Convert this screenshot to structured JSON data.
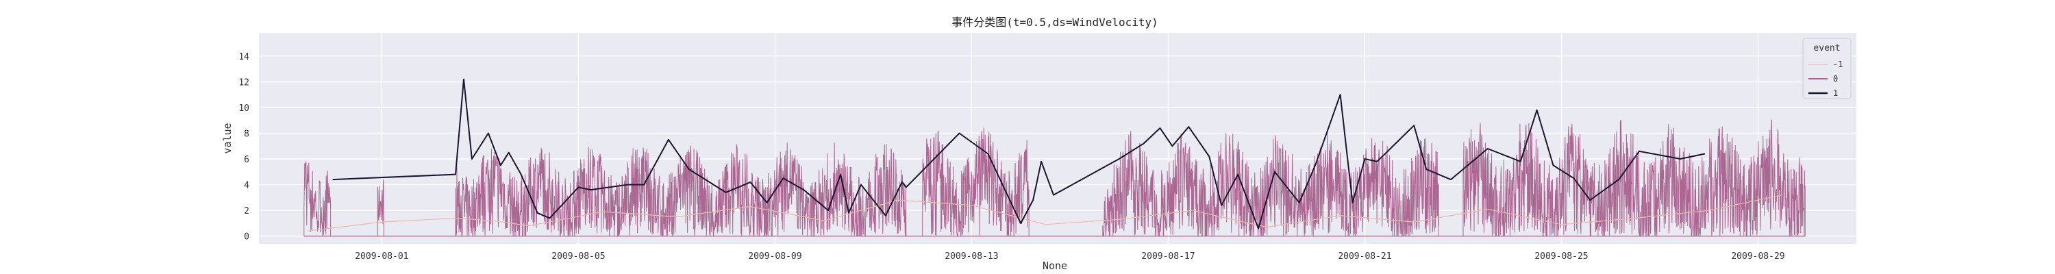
{
  "chart_data": {
    "type": "line",
    "title": "事件分类图(t=0.5,ds=WindVelocity)",
    "xlabel": "None",
    "ylabel": "value",
    "xlim": [
      "2009-07-29T12:00",
      "2009-08-31T00:00"
    ],
    "ylim": [
      -0.6,
      15.8
    ],
    "yticks": [
      0,
      2,
      4,
      6,
      8,
      10,
      12,
      14
    ],
    "xticks": [
      "2009-08-01",
      "2009-08-05",
      "2009-08-09",
      "2009-08-13",
      "2009-08-17",
      "2009-08-21",
      "2009-08-25",
      "2009-08-29"
    ],
    "grid": true,
    "legend": {
      "title": "event",
      "position": "top-right",
      "entries": [
        "-1",
        "0",
        "1"
      ]
    },
    "colors": {
      "background": "#eaeaf2",
      "grid": "#ffffff",
      "series_-1": "#f0b8a8",
      "series_0": "#a8608c",
      "series_1": "#1c1530"
    },
    "series": [
      {
        "name": "-1",
        "note_style": "thin",
        "x": [
          "2009-07-30T12:00",
          "2009-08-01T00:00",
          "2009-08-02T12:00",
          "2009-08-03T06:00",
          "2009-08-04T00:00",
          "2009-08-05T12:00",
          "2009-08-07T00:00",
          "2009-08-08T12:00",
          "2009-08-10T00:00",
          "2009-08-11T12:00",
          "2009-08-13T00:00",
          "2009-08-14T12:00",
          "2009-08-16T00:00",
          "2009-08-17T12:00",
          "2009-08-19T00:00",
          "2009-08-20T12:00",
          "2009-08-22T00:00",
          "2009-08-23T12:00",
          "2009-08-25T00:00",
          "2009-08-26T12:00",
          "2009-08-28T00:00",
          "2009-08-29T12:00"
        ],
        "y": [
          0.4,
          1.1,
          1.4,
          1.2,
          0.8,
          1.9,
          1.5,
          2.3,
          1.2,
          2.8,
          2.4,
          0.9,
          1.3,
          2.0,
          0.7,
          1.6,
          1.1,
          2.1,
          0.9,
          1.4,
          2.0,
          3.2
        ]
      },
      {
        "name": "0",
        "segments": [
          {
            "start": "2009-07-30T10:00",
            "end": "2009-07-30T23:00",
            "base": 5.5,
            "amp": 3.0
          },
          {
            "start": "2009-07-31T22:00",
            "end": "2009-08-01T01:00",
            "base": 4.0,
            "amp": 2.0
          },
          {
            "start": "2009-08-02T12:00",
            "end": "2009-08-11T16:00",
            "base": 4.5,
            "amp": 3.5
          },
          {
            "start": "2009-08-12T00:00",
            "end": "2009-08-14T04:00",
            "base": 5.5,
            "amp": 3.8
          },
          {
            "start": "2009-08-15T16:00",
            "end": "2009-08-22T12:00",
            "base": 5.0,
            "amp": 4.0
          },
          {
            "start": "2009-08-23T00:00",
            "end": "2009-08-29T23:00",
            "base": 5.5,
            "amp": 4.5
          }
        ]
      },
      {
        "name": "1",
        "x": [
          "2009-07-31T00:00",
          "2009-08-02T12:00",
          "2009-08-02T16:00",
          "2009-08-02T20:00",
          "2009-08-03T04:00",
          "2009-08-03T10:00",
          "2009-08-03T14:00",
          "2009-08-03T20:00",
          "2009-08-04T04:00",
          "2009-08-04T10:00",
          "2009-08-05T00:00",
          "2009-08-05T06:00",
          "2009-08-06T00:00",
          "2009-08-06T08:00",
          "2009-08-06T20:00",
          "2009-08-07T06:00",
          "2009-08-07T18:00",
          "2009-08-08T00:00",
          "2009-08-08T12:00",
          "2009-08-08T20:00",
          "2009-08-09T04:00",
          "2009-08-09T14:00",
          "2009-08-10T02:00",
          "2009-08-10T08:00",
          "2009-08-10T12:00",
          "2009-08-10T18:00",
          "2009-08-11T06:00",
          "2009-08-11T14:00",
          "2009-08-11T16:00",
          "2009-08-12T18:00",
          "2009-08-13T08:00",
          "2009-08-14T00:00",
          "2009-08-14T06:00",
          "2009-08-14T10:00",
          "2009-08-14T16:00",
          "2009-08-16T00:00",
          "2009-08-16T12:00",
          "2009-08-16T20:00",
          "2009-08-17T02:00",
          "2009-08-17T10:00",
          "2009-08-17T20:00",
          "2009-08-18T02:00",
          "2009-08-18T10:00",
          "2009-08-18T20:00",
          "2009-08-19T04:00",
          "2009-08-19T16:00",
          "2009-08-20T00:00",
          "2009-08-20T12:00",
          "2009-08-20T18:00",
          "2009-08-21T00:00",
          "2009-08-21T06:00",
          "2009-08-22T00:00",
          "2009-08-22T06:00",
          "2009-08-22T18:00",
          "2009-08-23T12:00",
          "2009-08-24T04:00",
          "2009-08-24T12:00",
          "2009-08-24T20:00",
          "2009-08-25T06:00",
          "2009-08-25T14:00",
          "2009-08-26T04:00",
          "2009-08-26T14:00",
          "2009-08-27T10:00",
          "2009-08-27T22:00"
        ],
        "y": [
          4.4,
          4.8,
          12.2,
          6.0,
          8.0,
          5.5,
          6.5,
          4.8,
          1.8,
          1.4,
          3.8,
          3.6,
          4.0,
          4.0,
          7.5,
          5.2,
          4.0,
          3.4,
          4.2,
          2.6,
          4.5,
          3.6,
          2.0,
          4.8,
          1.8,
          4.0,
          1.6,
          4.2,
          3.8,
          8.0,
          6.4,
          1.0,
          2.8,
          5.8,
          3.2,
          6.0,
          7.2,
          8.4,
          7.0,
          8.5,
          6.2,
          2.4,
          4.8,
          0.6,
          5.0,
          2.6,
          5.6,
          11.0,
          2.6,
          6.0,
          5.8,
          8.6,
          5.2,
          4.4,
          6.8,
          5.8,
          9.8,
          5.5,
          4.5,
          2.8,
          4.4,
          6.6,
          6.0,
          6.4
        ]
      }
    ]
  }
}
